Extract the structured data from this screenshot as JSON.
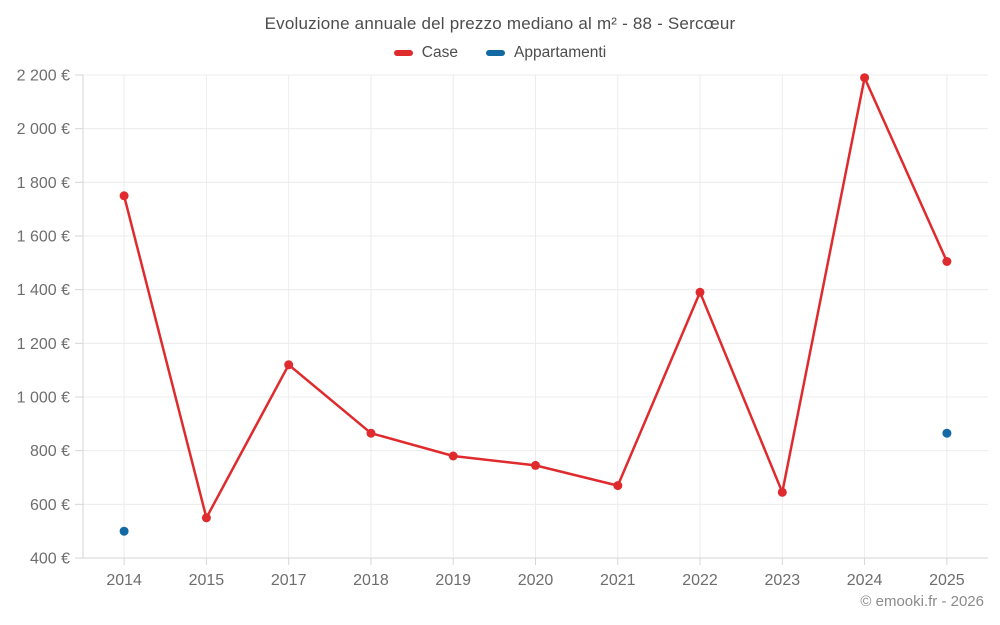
{
  "title": "Evoluzione annuale del prezzo mediano al m² - 88 - Sercœur",
  "legend": [
    {
      "label": "Case",
      "color": "#df2b2e"
    },
    {
      "label": "Appartamenti",
      "color": "#1269a4"
    }
  ],
  "footer": "© emooki.fr - 2026",
  "colors": {
    "case_red": "#df2b2e",
    "appartamenti_blue": "#1269a4",
    "gridline": "#ececec",
    "axis": "#d6d6d6",
    "tick_text": "#6e6e6e",
    "title_text": "#4d4d4d",
    "footer_text": "#8b8b8b"
  },
  "chart_data": {
    "type": "line",
    "title": "Evoluzione annuale del prezzo mediano al m² - 88 - Sercœur",
    "categories": [
      "2014",
      "2015",
      "2017",
      "2018",
      "2019",
      "2020",
      "2021",
      "2022",
      "2023",
      "2024",
      "2025"
    ],
    "series": [
      {
        "name": "Case",
        "color": "#df2b2e",
        "values": [
          1750,
          550,
          1120,
          865,
          780,
          745,
          670,
          1390,
          645,
          2190,
          1505
        ]
      },
      {
        "name": "Appartamenti",
        "color": "#1269a4",
        "values": [
          500,
          null,
          null,
          null,
          null,
          null,
          null,
          null,
          null,
          null,
          865
        ]
      }
    ],
    "ylim": [
      400,
      2200
    ],
    "ytick_step": 200,
    "ytick_labels": [
      "400 €",
      "600 €",
      "800 €",
      "1 000 €",
      "1 200 €",
      "1 400 €",
      "1 600 €",
      "1 800 €",
      "2 000 €",
      "2 200 €"
    ],
    "y_suffix": " €",
    "xlabel": "",
    "ylabel": "",
    "grid": true,
    "legend_position": "top"
  }
}
